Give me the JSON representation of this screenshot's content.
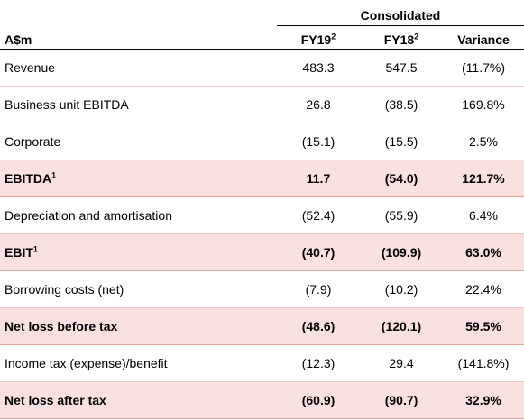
{
  "header": {
    "group_label": "Consolidated",
    "unit_label": "A$m",
    "columns": [
      {
        "label": "FY19",
        "sup": "2"
      },
      {
        "label": "FY18",
        "sup": "2"
      },
      {
        "label": "Variance",
        "sup": ""
      }
    ]
  },
  "rows": [
    {
      "label": "Revenue",
      "sup": "",
      "fy19": "483.3",
      "fy18": "547.5",
      "variance": "(11.7%)",
      "highlight": false
    },
    {
      "label": "Business unit EBITDA",
      "sup": "",
      "fy19": "26.8",
      "fy18": "(38.5)",
      "variance": "169.8%",
      "highlight": false
    },
    {
      "label": "Corporate",
      "sup": "",
      "fy19": "(15.1)",
      "fy18": "(15.5)",
      "variance": "2.5%",
      "highlight": false
    },
    {
      "label": "EBITDA",
      "sup": "1",
      "fy19": "11.7",
      "fy18": "(54.0)",
      "variance": "121.7%",
      "highlight": true
    },
    {
      "label": "Depreciation and amortisation",
      "sup": "",
      "fy19": "(52.4)",
      "fy18": "(55.9)",
      "variance": "6.4%",
      "highlight": false
    },
    {
      "label": "EBIT",
      "sup": "1",
      "fy19": "(40.7)",
      "fy18": "(109.9)",
      "variance": "63.0%",
      "highlight": true
    },
    {
      "label": "Borrowing costs (net)",
      "sup": "",
      "fy19": "(7.9)",
      "fy18": "(10.2)",
      "variance": "22.4%",
      "highlight": false
    },
    {
      "label": "Net loss before tax",
      "sup": "",
      "fy19": "(48.6)",
      "fy18": "(120.1)",
      "variance": "59.5%",
      "highlight": true
    },
    {
      "label": "Income tax (expense)/benefit",
      "sup": "",
      "fy19": "(12.3)",
      "fy18": "29.4",
      "variance": "(141.8%)",
      "highlight": false
    },
    {
      "label": "Net loss after tax",
      "sup": "",
      "fy19": "(60.9)",
      "fy18": "(90.7)",
      "variance": "32.9%",
      "highlight": true
    }
  ]
}
